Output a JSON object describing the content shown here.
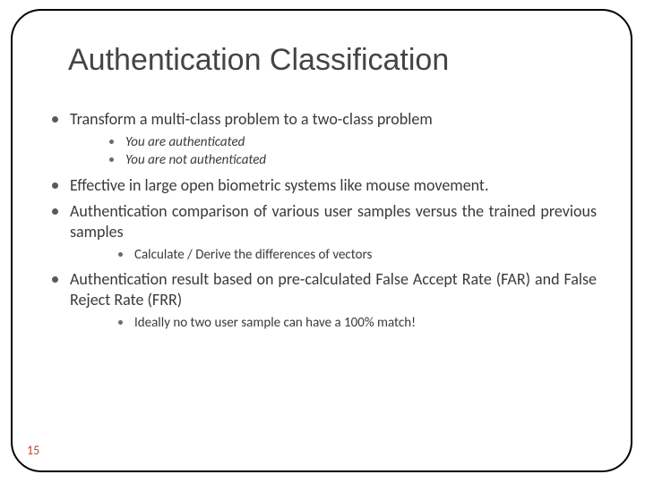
{
  "slide": {
    "title": "Authentication Classification",
    "page_number": "15",
    "colors": {
      "border": "#000000",
      "title_text": "#444444",
      "body_text": "#3a3a3a",
      "bullet": "#5a5a5a",
      "page_number": "#b34a2a",
      "background": "#ffffff"
    },
    "bullets": {
      "b1": "Transform a multi-class problem to a two-class problem",
      "b1_sub1": "You are authenticated",
      "b1_sub2": "You are not authenticated",
      "b2": "Effective in large open biometric systems like mouse movement.",
      "b3": "Authentication comparison of various user samples versus the trained previous samples",
      "b3_sub1": "Calculate / Derive the differences of vectors",
      "b4": "Authentication result based on pre-calculated False Accept Rate (FAR) and False Reject Rate (FRR)",
      "b4_sub1": "Ideally no two user sample can have a 100% match!"
    }
  }
}
